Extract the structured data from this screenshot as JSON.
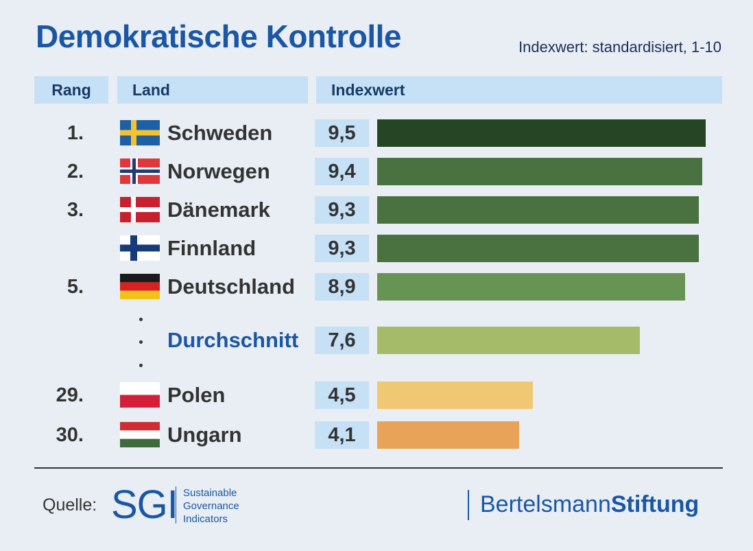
{
  "title": "Demokratische Kontrolle",
  "subtitle": "Indexwert: standardisiert, 1-10",
  "headers": {
    "rang": "Rang",
    "land": "Land",
    "index": "Indexwert"
  },
  "chart_data": {
    "type": "bar",
    "orientation": "horizontal",
    "xlim": [
      0,
      10
    ],
    "rows": [
      {
        "rank": "1.",
        "country": "Schweden",
        "label": "9,5",
        "value": 9.5,
        "flag": "sweden-flag",
        "color": "#254524"
      },
      {
        "rank": "2.",
        "country": "Norwegen",
        "label": "9,4",
        "value": 9.4,
        "flag": "norway-flag",
        "color": "#4a7140"
      },
      {
        "rank": "3.",
        "country": "Dänemark",
        "label": "9,3",
        "value": 9.3,
        "flag": "denmark-flag",
        "color": "#4a7140"
      },
      {
        "rank": "",
        "country": "Finnland",
        "label": "9,3",
        "value": 9.3,
        "flag": "finland-flag",
        "color": "#4a7140"
      },
      {
        "rank": "5.",
        "country": "Deutschland",
        "label": "8,9",
        "value": 8.9,
        "flag": "germany-flag",
        "color": "#679452"
      },
      {
        "rank": "",
        "country": "Durchschnitt",
        "label": "7,6",
        "value": 7.6,
        "flag": "",
        "color": "#a6bb69",
        "average": true
      },
      {
        "rank": "29.",
        "country": "Polen",
        "label": "4,5",
        "value": 4.5,
        "flag": "poland-flag",
        "color": "#f0c873"
      },
      {
        "rank": "30.",
        "country": "Ungarn",
        "label": "4,1",
        "value": 4.1,
        "flag": "hungary-flag",
        "color": "#e9a358"
      }
    ]
  },
  "footer": {
    "quelle": "Quelle:",
    "sgi_logo": "SGI",
    "sgi_lines": [
      "Sustainable",
      "Governance",
      "Indicators"
    ],
    "bs_regular": "Bertelsmann",
    "bs_bold": "Stiftung"
  }
}
